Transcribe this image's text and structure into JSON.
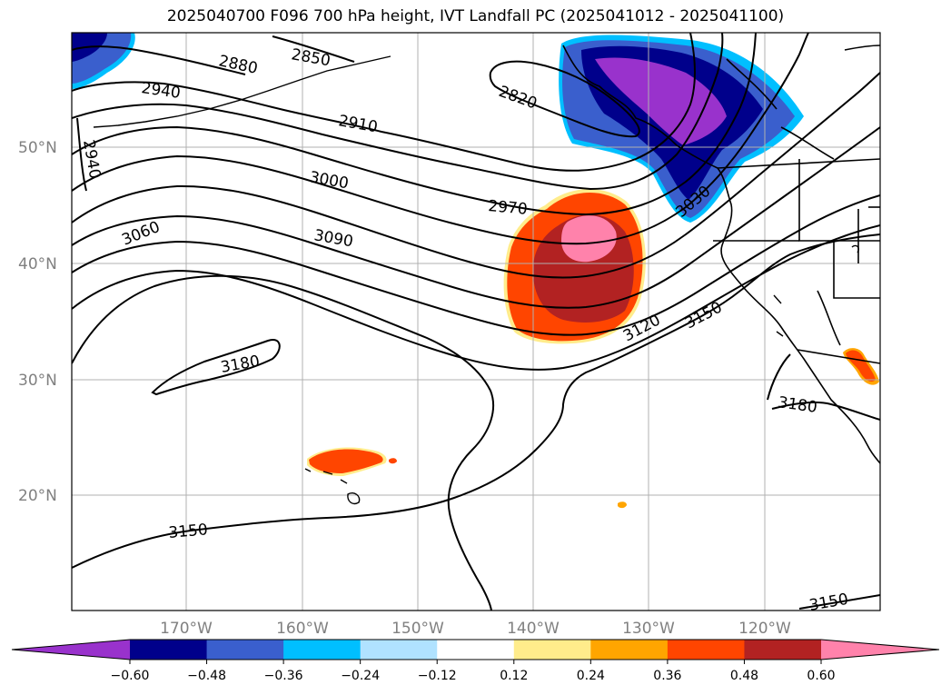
{
  "title": "2025040700 F096 700 hPa height, IVT Landfall PC (2025041012 - 2025041100)",
  "map": {
    "lat_labels": [
      "50°N",
      "40°N",
      "30°N",
      "20°N"
    ],
    "lon_labels": [
      "170°W",
      "160°W",
      "150°W",
      "140°W",
      "130°W",
      "120°W"
    ],
    "contour_labels": [
      "2880",
      "2850",
      "2940",
      "2820",
      "2910",
      "2940",
      "3000",
      "2970",
      "3060",
      "3090",
      "3120",
      "3150",
      "3030",
      "3180",
      "3180",
      "3150",
      "3150"
    ]
  },
  "colorbar": {
    "colors": [
      "#9932cc",
      "#00008b",
      "#3a5fcd",
      "#00bfff",
      "#b0e2ff",
      "#ffffff",
      "#ffec8b",
      "#ffa500",
      "#ff4500",
      "#b22222",
      "#ff82ab"
    ],
    "ticks": [
      "−0.60",
      "−0.48",
      "−0.36",
      "−0.24",
      "−0.12",
      "0.12",
      "0.24",
      "0.36",
      "0.48",
      "0.60"
    ]
  }
}
